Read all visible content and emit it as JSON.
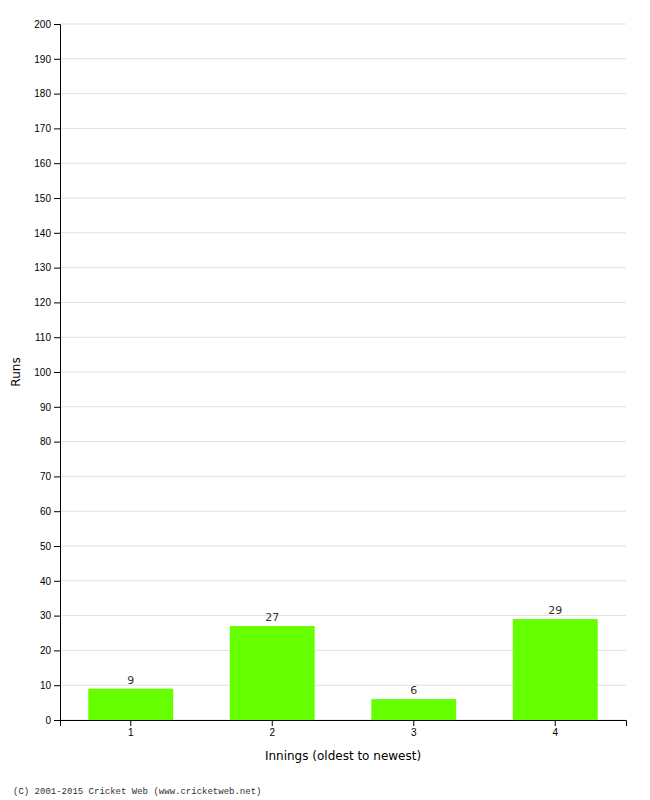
{
  "chart_data": {
    "type": "bar",
    "categories": [
      1,
      2,
      3,
      4
    ],
    "values": [
      9,
      27,
      6,
      29
    ],
    "color": "#66ff00",
    "xlabel": "Innings (oldest to newest)",
    "ylabel": "Runs",
    "ylim": [
      0,
      200
    ],
    "yticks": [
      0,
      10,
      20,
      30,
      40,
      50,
      60,
      70,
      80,
      90,
      100,
      110,
      120,
      130,
      140,
      150,
      160,
      170,
      180,
      190,
      200
    ],
    "grid": true,
    "data_labels": true,
    "annotations": [
      "(C) 2001-2015 Cricket Web (www.cricketweb.net)"
    ]
  }
}
